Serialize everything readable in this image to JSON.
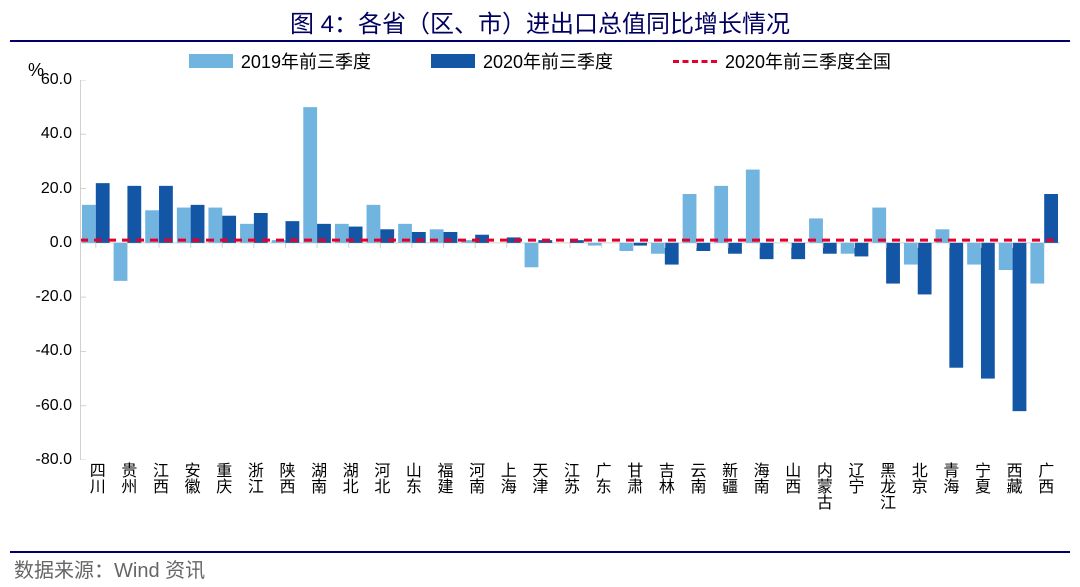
{
  "title": "图 4：各省（区、市）进出口总值同比增长情况",
  "y_unit": "%",
  "source_label": "数据来源：Wind 资讯",
  "legend": {
    "s2019": "2019年前三季度",
    "s2020": "2020年前三季度",
    "natl": "2020年前三季度全国"
  },
  "chart": {
    "type": "bar",
    "ylim": [
      -80,
      60
    ],
    "ytick_step": 20,
    "yticks": [
      "60.0",
      "40.0",
      "20.0",
      "0.0",
      "-20.0",
      "-40.0",
      "-60.0",
      "-80.0"
    ],
    "national_2020_value": 1.0,
    "categories": [
      "四川",
      "贵州",
      "江西",
      "安徽",
      "重庆",
      "浙江",
      "陕西",
      "湖南",
      "湖北",
      "河北",
      "山东",
      "福建",
      "河南",
      "上海",
      "天津",
      "江苏",
      "广东",
      "甘肃",
      "吉林",
      "云南",
      "新疆",
      "海南",
      "山西",
      "内蒙古",
      "辽宁",
      "黑龙江",
      "北京",
      "青海",
      "宁夏",
      "西藏",
      "广西"
    ],
    "series": {
      "s2019": {
        "color": "#71b4e0",
        "values": [
          14,
          -14,
          12,
          13,
          13,
          7,
          1,
          50,
          7,
          14,
          7,
          5,
          1,
          0,
          -9,
          0,
          -1,
          -3,
          -4,
          18,
          21,
          27,
          0,
          9,
          -4,
          13,
          -8,
          5,
          -8,
          -10,
          -15
        ]
      },
      "s2020": {
        "color": "#1256a5",
        "values": [
          22,
          21,
          21,
          14,
          10,
          11,
          8,
          7,
          6,
          5,
          4,
          4,
          3,
          2,
          1,
          1,
          0,
          -1,
          -8,
          -3,
          -4,
          -6,
          -6,
          -4,
          -5,
          -15,
          -19,
          -46,
          -50,
          -62,
          18
        ]
      }
    },
    "axis_color": "#d0d0d0",
    "grid_color": "#e6e6e6",
    "natl_color": "#e4002b",
    "background_color": "#ffffff",
    "bar_group_gap": 2,
    "label_fontsize": 16,
    "title_fontsize": 24
  }
}
